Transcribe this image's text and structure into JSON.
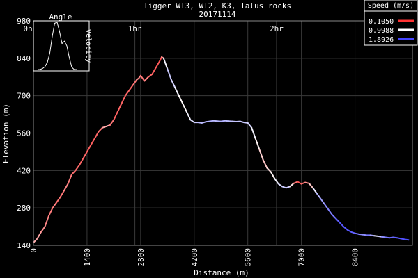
{
  "chart_data": {
    "type": "line",
    "title": "Tigger WT3, WT2, K3, Talus rocks",
    "subtitle": "20171114",
    "xlabel": "Distance (m)",
    "ylabel": "Elevation (m)",
    "xlim": [
      0,
      9900
    ],
    "ylim": [
      140,
      980
    ],
    "x_ticks": [
      "0",
      "1400",
      "2800",
      "4200",
      "5600",
      "7000",
      "8400"
    ],
    "y_ticks": [
      "140",
      "280",
      "420",
      "560",
      "700",
      "840",
      "980"
    ],
    "time_ticks": [
      {
        "label": "0h",
        "x": 0
      },
      {
        "label": "1hr",
        "x": 2650
      },
      {
        "label": "2hr",
        "x": 6350
      }
    ],
    "grid": true,
    "colors": {
      "background": "#000000",
      "grid": "#3a3a3a",
      "axis": "#ffffff",
      "slow": "#ff3333",
      "mid": "#ffffff",
      "fast": "#4444ff"
    },
    "legend": {
      "title": "Speed (m/s)",
      "placement": "top-right",
      "entries": [
        {
          "label": "0.1050",
          "color": "#ff3333"
        },
        {
          "label": "0.9988",
          "color": "#ffffff"
        },
        {
          "label": "1.8926",
          "color": "#4444ff"
        }
      ]
    },
    "inset": {
      "title": "Angle",
      "side_label": "Velocity",
      "profile": [
        0,
        0,
        0.02,
        0.06,
        0.15,
        0.35,
        0.7,
        0.98,
        1.0,
        0.8,
        0.55,
        0.6,
        0.5,
        0.25,
        0.05,
        0,
        0
      ]
    },
    "series": [
      {
        "x": [
          0,
          100,
          200,
          300,
          400,
          500,
          600,
          700,
          800,
          900,
          1000,
          1100,
          1200,
          1300,
          1400,
          1500,
          1600,
          1700,
          1800,
          1900,
          2000,
          2100,
          2200,
          2300,
          2400,
          2500,
          2600,
          2700,
          2750,
          2800,
          2900,
          3000,
          3100,
          3200,
          3300,
          3350,
          3400,
          3500,
          3600,
          3700,
          3800,
          3900,
          4000,
          4100,
          4200,
          4300,
          4400,
          4500,
          4600,
          4700,
          4800,
          4900,
          5000,
          5100,
          5200,
          5300,
          5400,
          5500,
          5600,
          5700,
          5800,
          5900,
          6000,
          6100,
          6200,
          6300,
          6400,
          6500,
          6600,
          6700,
          6800,
          6900,
          7000,
          7100,
          7200,
          7300,
          7400,
          7500,
          7600,
          7700,
          7800,
          7900,
          8000,
          8100,
          8200,
          8300,
          8400,
          8500,
          8600,
          8700,
          8800,
          8900,
          9000,
          9100,
          9200,
          9300,
          9400,
          9500,
          9600,
          9700,
          9800,
          9900
        ],
        "y": [
          150,
          165,
          190,
          210,
          250,
          280,
          300,
          320,
          345,
          370,
          405,
          420,
          440,
          465,
          490,
          515,
          540,
          565,
          580,
          585,
          590,
          610,
          640,
          670,
          700,
          720,
          740,
          760,
          765,
          775,
          755,
          770,
          780,
          805,
          830,
          845,
          840,
          800,
          760,
          730,
          700,
          670,
          640,
          610,
          600,
          600,
          598,
          602,
          604,
          606,
          605,
          604,
          606,
          605,
          604,
          603,
          604,
          600,
          598,
          580,
          540,
          500,
          460,
          430,
          415,
          390,
          370,
          360,
          355,
          360,
          372,
          378,
          370,
          375,
          372,
          355,
          335,
          315,
          295,
          275,
          255,
          240,
          225,
          210,
          198,
          190,
          185,
          182,
          180,
          178,
          178,
          176,
          174,
          172,
          170,
          168,
          170,
          168,
          165,
          162,
          160,
          158
        ],
        "speed": [
          0.6,
          0.7,
          0.5,
          0.55,
          0.4,
          0.45,
          0.4,
          0.35,
          0.45,
          0.5,
          0.35,
          0.4,
          0.3,
          0.35,
          0.3,
          0.3,
          0.3,
          0.35,
          0.4,
          0.8,
          0.5,
          0.3,
          0.3,
          0.35,
          0.3,
          0.35,
          0.3,
          0.5,
          0.6,
          0.3,
          0.5,
          0.4,
          0.3,
          0.3,
          0.25,
          0.2,
          0.9,
          1.2,
          1.3,
          1.1,
          1.0,
          0.95,
          1.0,
          1.1,
          1.2,
          1.3,
          1.35,
          1.3,
          1.4,
          1.35,
          1.3,
          1.4,
          1.35,
          1.3,
          1.3,
          1.25,
          1.3,
          1.2,
          1.3,
          1.1,
          1.0,
          0.9,
          0.7,
          0.8,
          0.9,
          1.0,
          1.1,
          1.2,
          1.3,
          1.2,
          0.6,
          0.2,
          0.3,
          0.4,
          0.6,
          0.9,
          1.3,
          1.4,
          1.5,
          1.6,
          1.6,
          1.7,
          1.8,
          1.8,
          1.8,
          1.8,
          1.75,
          1.6,
          1.5,
          1.6,
          1.7,
          1.2,
          1.0,
          1.5,
          1.6,
          1.7,
          1.7,
          1.8,
          1.8,
          1.85,
          1.85
        ]
      }
    ]
  }
}
